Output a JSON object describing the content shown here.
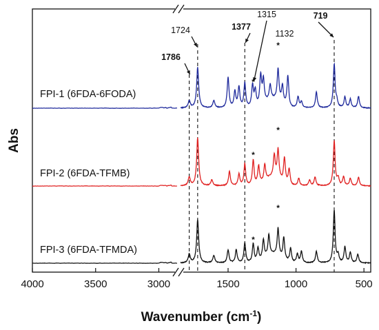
{
  "chart_data": {
    "type": "line",
    "xlabel": "Wavenumber (cm",
    "xlabel_sup": "-1",
    "xlabel_close": ")",
    "ylabel": "Abs",
    "x_ticks": [
      "4000",
      "3500",
      "3000",
      "1500",
      "1000",
      "500"
    ],
    "x_segments": [
      {
        "xlim": [
          4000,
          2850
        ]
      },
      {
        "xlim": [
          1850,
          450
        ]
      }
    ],
    "axis_break": "//",
    "series": [
      {
        "name": "FPI-1 (6FDA-6FODA)",
        "color": "#1f2a9c",
        "peaks": [
          [
            1786,
            0.1
          ],
          [
            1724,
            0.56
          ],
          [
            1605,
            0.1
          ],
          [
            1500,
            0.42
          ],
          [
            1450,
            0.22
          ],
          [
            1420,
            0.28
          ],
          [
            1377,
            0.34
          ],
          [
            1320,
            0.3
          ],
          [
            1300,
            0.22
          ],
          [
            1260,
            0.4
          ],
          [
            1240,
            0.32
          ],
          [
            1190,
            0.2
          ],
          [
            1132,
            0.44
          ],
          [
            1100,
            0.24
          ],
          [
            1060,
            0.42
          ],
          [
            985,
            0.15
          ],
          [
            960,
            0.08
          ],
          [
            850,
            0.22
          ],
          [
            719,
            0.6
          ],
          [
            700,
            0.08
          ],
          [
            640,
            0.15
          ],
          [
            600,
            0.12
          ],
          [
            540,
            0.16
          ]
        ]
      },
      {
        "name": "FPI-2 (6FDA-TFMB)",
        "color": "#e02020",
        "peaks": [
          [
            1786,
            0.12
          ],
          [
            1724,
            0.66
          ],
          [
            1620,
            0.08
          ],
          [
            1490,
            0.2
          ],
          [
            1420,
            0.16
          ],
          [
            1377,
            0.3
          ],
          [
            1315,
            0.35
          ],
          [
            1275,
            0.25
          ],
          [
            1230,
            0.22
          ],
          [
            1160,
            0.3
          ],
          [
            1132,
            0.4
          ],
          [
            1085,
            0.34
          ],
          [
            1050,
            0.22
          ],
          [
            980,
            0.1
          ],
          [
            900,
            0.08
          ],
          [
            860,
            0.12
          ],
          [
            719,
            0.62
          ],
          [
            690,
            0.1
          ],
          [
            650,
            0.12
          ],
          [
            600,
            0.1
          ],
          [
            540,
            0.12
          ]
        ]
      },
      {
        "name": "FPI-3 (6FDA-TFMDA)",
        "color": "#111111",
        "peaks": [
          [
            1786,
            0.12
          ],
          [
            1724,
            0.6
          ],
          [
            1605,
            0.1
          ],
          [
            1500,
            0.18
          ],
          [
            1440,
            0.18
          ],
          [
            1377,
            0.28
          ],
          [
            1315,
            0.26
          ],
          [
            1280,
            0.18
          ],
          [
            1240,
            0.26
          ],
          [
            1200,
            0.28
          ],
          [
            1132,
            0.38
          ],
          [
            1090,
            0.3
          ],
          [
            1040,
            0.2
          ],
          [
            990,
            0.12
          ],
          [
            960,
            0.16
          ],
          [
            850,
            0.16
          ],
          [
            719,
            0.72
          ],
          [
            690,
            0.1
          ],
          [
            640,
            0.22
          ],
          [
            600,
            0.14
          ],
          [
            545,
            0.12
          ]
        ]
      }
    ],
    "annotations": [
      {
        "text": "1786",
        "bold": true,
        "x": 1786
      },
      {
        "text": "1724",
        "bold": false,
        "x": 1724
      },
      {
        "text": "1377",
        "bold": true,
        "x": 1377
      },
      {
        "text": "1315",
        "bold": false,
        "x": 1315
      },
      {
        "text": "1132",
        "bold": false,
        "x": 1132
      },
      {
        "text": "719",
        "bold": true,
        "x": 719
      }
    ],
    "dashed_lines_x": [
      1786,
      1724,
      1377,
      719
    ],
    "star": "*",
    "grid": false
  }
}
